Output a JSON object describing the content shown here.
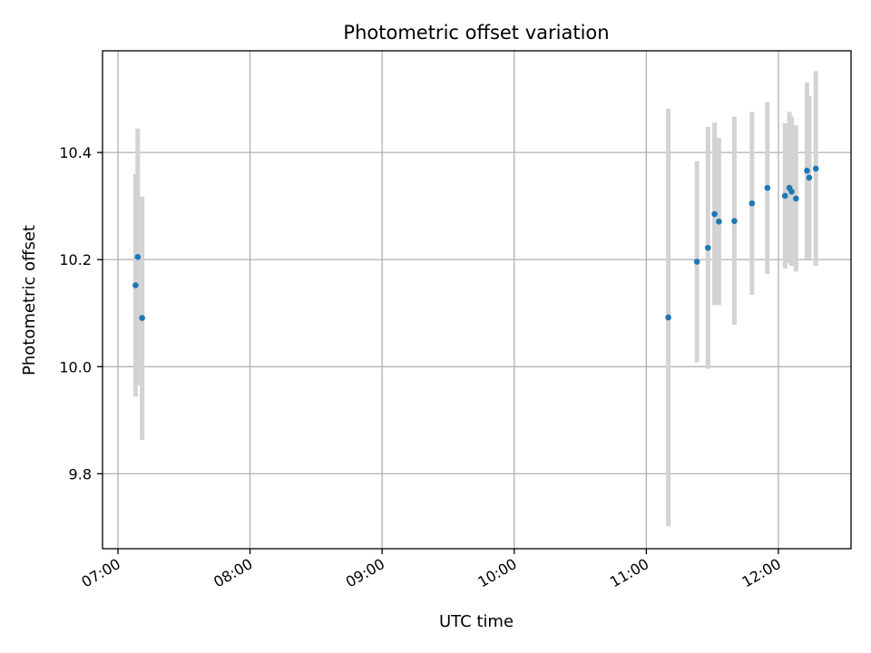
{
  "chart_data": {
    "type": "scatter",
    "title": "Photometric offset variation",
    "xlabel": "UTC time",
    "ylabel": "Photometric offset",
    "x_tick_labels": [
      "07:00",
      "08:00",
      "09:00",
      "10:00",
      "11:00",
      "12:00"
    ],
    "y_tick_labels": [
      "9.8",
      "10.0",
      "10.2",
      "10.4"
    ],
    "y_ticks": [
      9.8,
      10.0,
      10.2,
      10.4
    ],
    "xlim": [
      "06:53",
      "12:33"
    ],
    "ylim": [
      9.66,
      10.59
    ],
    "grid": true,
    "x_tick_rotation": "rotated 30°",
    "colors": {
      "marker": "#1f77b4",
      "errorbar": "#d3d3d3",
      "grid": "#b0b0b0"
    },
    "points": [
      {
        "x": "07:08",
        "y": 10.152,
        "yerr_low": 9.944,
        "yerr_high": 10.36
      },
      {
        "x": "07:09",
        "y": 10.205,
        "yerr_low": 9.965,
        "yerr_high": 10.445
      },
      {
        "x": "07:11",
        "y": 10.091,
        "yerr_low": 9.863,
        "yerr_high": 10.318
      },
      {
        "x": "11:10",
        "y": 10.092,
        "yerr_low": 9.702,
        "yerr_high": 10.482
      },
      {
        "x": "11:23",
        "y": 10.196,
        "yerr_low": 10.008,
        "yerr_high": 10.384
      },
      {
        "x": "11:28",
        "y": 10.222,
        "yerr_low": 9.996,
        "yerr_high": 10.448
      },
      {
        "x": "11:31",
        "y": 10.285,
        "yerr_low": 10.115,
        "yerr_high": 10.456
      },
      {
        "x": "11:33",
        "y": 10.271,
        "yerr_low": 10.115,
        "yerr_high": 10.427
      },
      {
        "x": "11:40",
        "y": 10.272,
        "yerr_low": 10.078,
        "yerr_high": 10.467
      },
      {
        "x": "11:48",
        "y": 10.305,
        "yerr_low": 10.134,
        "yerr_high": 10.476
      },
      {
        "x": "11:55",
        "y": 10.334,
        "yerr_low": 10.173,
        "yerr_high": 10.494
      },
      {
        "x": "12:03",
        "y": 10.319,
        "yerr_low": 10.183,
        "yerr_high": 10.455
      },
      {
        "x": "12:05",
        "y": 10.334,
        "yerr_low": 10.193,
        "yerr_high": 10.476
      },
      {
        "x": "12:06",
        "y": 10.327,
        "yerr_low": 10.188,
        "yerr_high": 10.467
      },
      {
        "x": "12:08",
        "y": 10.314,
        "yerr_low": 10.178,
        "yerr_high": 10.451
      },
      {
        "x": "12:13",
        "y": 10.366,
        "yerr_low": 10.201,
        "yerr_high": 10.531
      },
      {
        "x": "12:14",
        "y": 10.353,
        "yerr_low": 10.201,
        "yerr_high": 10.505
      },
      {
        "x": "12:17",
        "y": 10.37,
        "yerr_low": 10.188,
        "yerr_high": 10.552
      }
    ]
  }
}
